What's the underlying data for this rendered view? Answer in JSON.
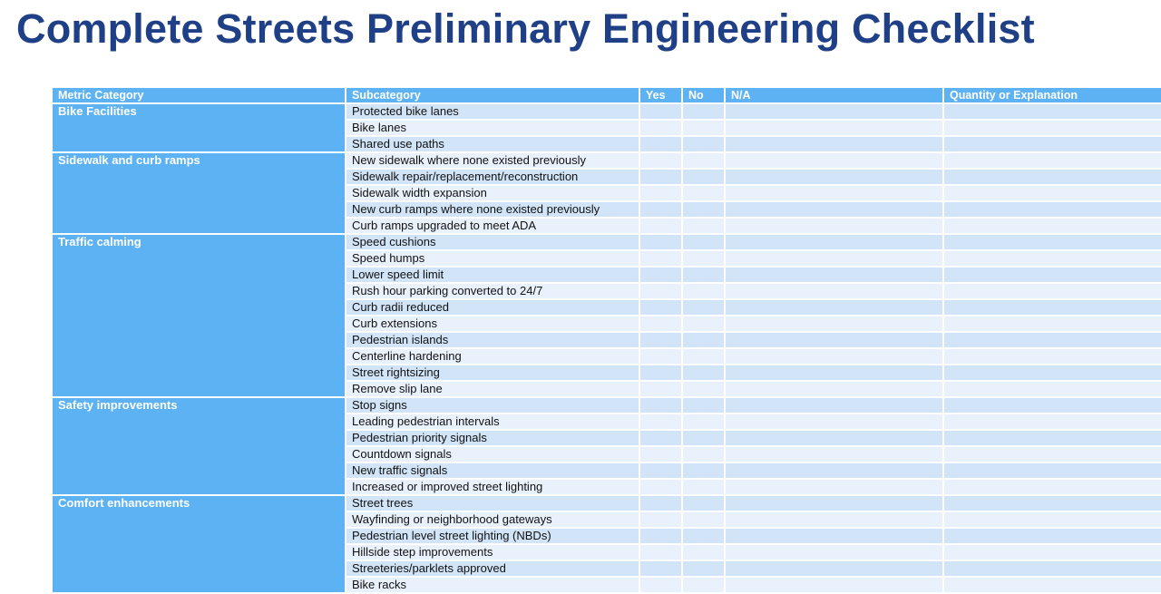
{
  "title": "Complete Streets Preliminary Engineering Checklist",
  "colors": {
    "title": "#1f3f86",
    "header_bg": "#5db2f3",
    "row_dark": "#d2e4f8",
    "row_light": "#e9f2fc"
  },
  "columns": {
    "metric_category": "Metric Category",
    "subcategory": "Subcategory",
    "yes": "Yes",
    "no": "No",
    "na": "N/A",
    "quantity": "Quantity or Explanation"
  },
  "categories": [
    {
      "name": "Bike Facilities",
      "items": [
        "Protected bike lanes",
        "Bike lanes",
        "Shared use paths"
      ]
    },
    {
      "name": "Sidewalk and curb ramps",
      "items": [
        "New sidewalk where none existed previously",
        "Sidewalk repair/replacement/reconstruction",
        "Sidewalk width expansion",
        "New curb ramps where none existed previously",
        "Curb ramps upgraded to meet ADA"
      ]
    },
    {
      "name": "Traffic calming",
      "items": [
        "Speed cushions",
        "Speed humps",
        "Lower speed limit",
        "Rush hour parking converted to 24/7",
        "Curb radii reduced",
        "Curb extensions",
        "Pedestrian islands",
        "Centerline hardening",
        "Street rightsizing",
        "Remove slip lane"
      ]
    },
    {
      "name": "Safety improvements",
      "items": [
        "Stop signs",
        "Leading pedestrian intervals",
        "Pedestrian priority signals",
        "Countdown signals",
        "New traffic signals",
        "Increased or improved street lighting"
      ]
    },
    {
      "name": "Comfort enhancements",
      "items": [
        "Street trees",
        "Wayfinding or neighborhood gateways",
        "Pedestrian level street lighting (NBDs)",
        "Hillside step improvements",
        "Streeteries/parklets approved",
        "Bike racks"
      ]
    }
  ]
}
